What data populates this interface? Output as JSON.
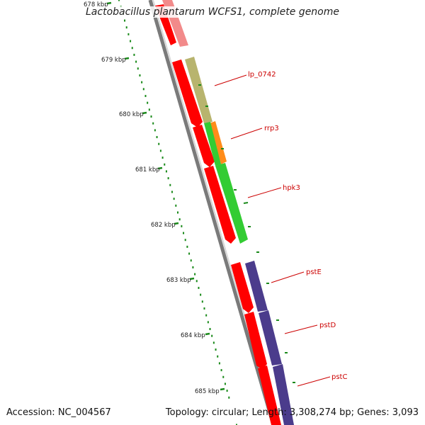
{
  "title": "Lactobacillus plantarum WCFS1, complete genome",
  "accession": "Accession: NC_004567",
  "summary": "Topology: circular; Length: 3,308,274 bp; Genes: 3,093",
  "kbp_ticks": [
    "678 kbp",
    "679 kbp",
    "680 kbp",
    "681 kbp",
    "682 kbp",
    "683 kbp",
    "684 kbp",
    "685 kbp"
  ],
  "gene_labels": [
    "lp_0742",
    "rrp3",
    "hpk3",
    "pstE",
    "pstD",
    "pstC"
  ],
  "colors": {
    "cds": "#ff0000",
    "cds_faded": "#f28a8a",
    "lp_0742": "#b8b46e",
    "rrp3": "#ff8c1a",
    "hpk3": "#33cc33",
    "pst": "#4b3c8c",
    "ruler": "#1a8a1a",
    "backbone": "#7a7a7a",
    "label_line": "#cc0000"
  }
}
